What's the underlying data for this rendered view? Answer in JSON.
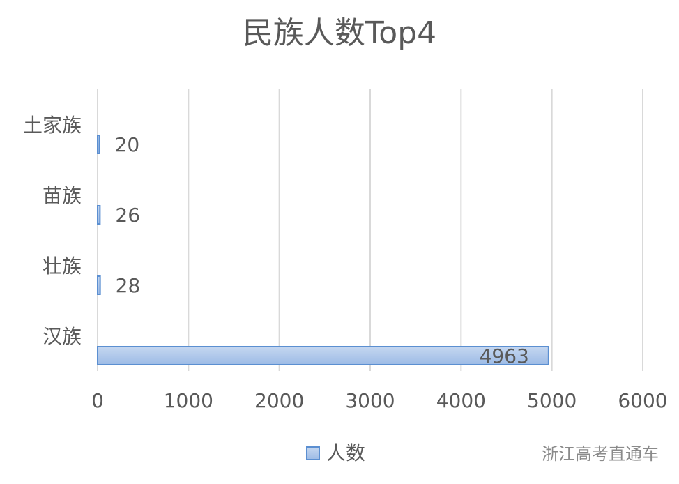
{
  "chart_data": {
    "type": "hbar",
    "title": "民族人数Top4",
    "categories": [
      "土家族",
      "苗族",
      "壮族",
      "汉族"
    ],
    "series": [
      {
        "name": "人数",
        "color": "#5b8fd1",
        "values": [
          20,
          26,
          28,
          4963
        ]
      }
    ],
    "xlim": [
      0,
      6000
    ],
    "xticks": [
      0,
      1000,
      2000,
      3000,
      4000,
      5000,
      6000
    ],
    "grid": true,
    "legend": "bottom",
    "watermark": "浙江高考直通车"
  }
}
